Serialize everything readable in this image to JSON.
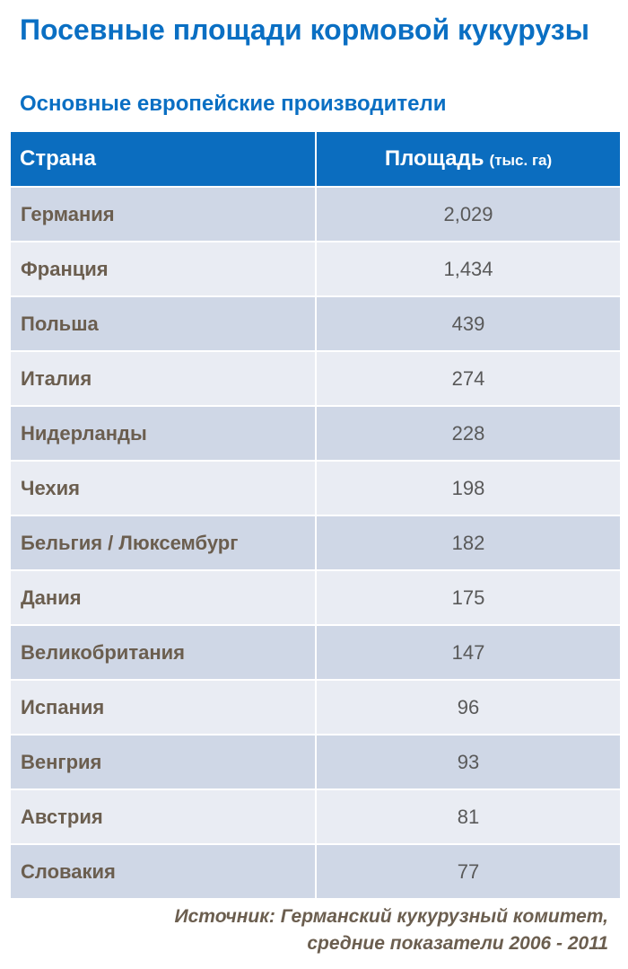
{
  "chart_data": {
    "type": "table",
    "title": "Посевные площади кормовой кукурузы",
    "subtitle": "Основные европейские производители",
    "columns": [
      {
        "label": "Страна",
        "unit": ""
      },
      {
        "label": "Площадь",
        "unit": "(тыс. га)"
      }
    ],
    "rows": [
      {
        "country": "Германия",
        "value": "2,029"
      },
      {
        "country": "Франция",
        "value": "1,434"
      },
      {
        "country": "Польша",
        "value": "439"
      },
      {
        "country": "Италия",
        "value": "274"
      },
      {
        "country": "Нидерланды",
        "value": "228"
      },
      {
        "country": "Чехия",
        "value": "198"
      },
      {
        "country": "Бельгия / Люксембург",
        "value": "182"
      },
      {
        "country": "Дания",
        "value": "175"
      },
      {
        "country": "Великобритания",
        "value": "147"
      },
      {
        "country": "Испания",
        "value": "96"
      },
      {
        "country": "Венгрия",
        "value": "93"
      },
      {
        "country": "Австрия",
        "value": "81"
      },
      {
        "country": "Словакия",
        "value": "77"
      }
    ],
    "source": [
      "Источник: Германский кукурузный комитет,",
      "средние показатели 2006 - 2011"
    ]
  },
  "colors": {
    "title": "#0a6fc3",
    "header_bg": "#0b6dbf",
    "row_dark": "#cfd7e6",
    "row_light": "#e9ecf3",
    "country_text": "#6b5e4f",
    "value_text": "#595959"
  }
}
